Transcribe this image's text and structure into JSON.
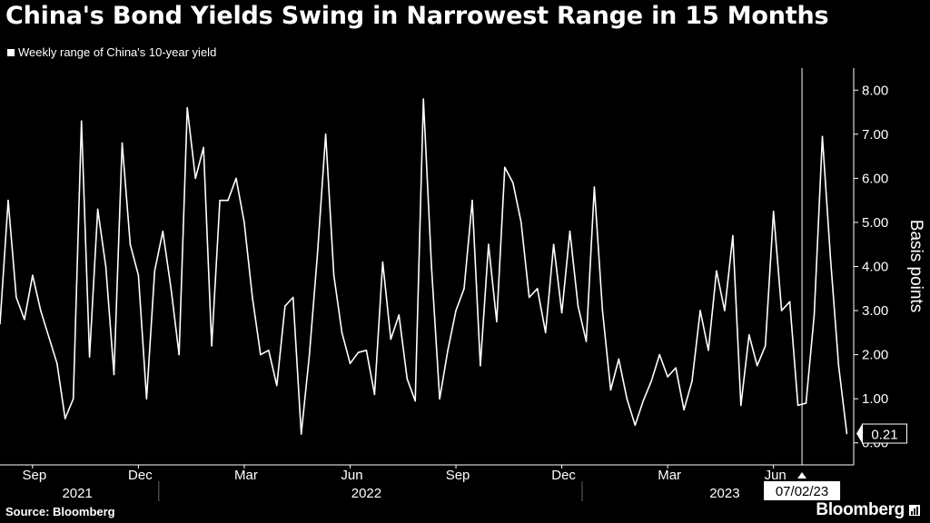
{
  "header": {
    "title": "China's Bond Yields Swing in Narrowest Range in 15 Months",
    "legend_label": "Weekly range of China's 10-year yield"
  },
  "footer": {
    "source": "Source: Bloomberg",
    "brand": "Bloomberg"
  },
  "colors": {
    "background": "#000000",
    "line": "#ffffff",
    "grid": "#444444",
    "text": "#ffffff"
  },
  "chart_data": {
    "type": "line",
    "title": "China's Bond Yields Swing in Narrowest Range in 15 Months",
    "ylabel": "Basis points",
    "xlabel": "",
    "ylim": [
      -0.5,
      8.5
    ],
    "yticks": [
      0,
      1,
      2,
      3,
      4,
      5,
      6,
      7,
      8
    ],
    "ytick_labels": [
      "0.00",
      "1.00",
      "2.00",
      "3.00",
      "4.00",
      "5.00",
      "6.00",
      "7.00",
      "8.00"
    ],
    "month_ticks": [
      {
        "label": "Sep",
        "week": 4
      },
      {
        "label": "Dec",
        "week": 17
      },
      {
        "label": "Mar",
        "week": 30
      },
      {
        "label": "Jun",
        "week": 43
      },
      {
        "label": "Sep",
        "week": 56
      },
      {
        "label": "Dec",
        "week": 69
      },
      {
        "label": "Mar",
        "week": 82
      },
      {
        "label": "Jun",
        "week": 95
      }
    ],
    "year_labels": [
      {
        "label": "2021",
        "week": 9.5
      },
      {
        "label": "2022",
        "week": 45
      },
      {
        "label": "2023",
        "week": 89
      }
    ],
    "year_dividers": [
      19.5,
      71.5
    ],
    "marker": {
      "label": "07/02/23",
      "week": 98.5
    },
    "last_value_label": "0.21",
    "legend": "top-left",
    "grid": false,
    "series": [
      {
        "name": "Weekly range of China's 10-year yield",
        "values": [
          2.7,
          5.5,
          3.3,
          2.8,
          3.8,
          3.0,
          2.4,
          1.8,
          0.55,
          1.0,
          7.3,
          1.95,
          5.3,
          4.0,
          1.55,
          6.8,
          4.5,
          3.8,
          1.0,
          3.9,
          4.8,
          3.5,
          2.0,
          7.6,
          6.0,
          6.7,
          2.2,
          5.5,
          5.5,
          6.0,
          5.0,
          3.3,
          2.0,
          2.1,
          1.3,
          3.1,
          3.3,
          0.2,
          2.0,
          4.3,
          7.0,
          3.8,
          2.5,
          1.8,
          2.05,
          2.1,
          1.1,
          4.1,
          2.35,
          2.9,
          1.45,
          0.95,
          7.8,
          4.0,
          1.0,
          2.1,
          3.0,
          3.5,
          5.5,
          1.75,
          4.5,
          2.75,
          6.25,
          5.9,
          5.0,
          3.3,
          3.5,
          2.5,
          4.5,
          2.95,
          4.8,
          3.1,
          2.3,
          5.8,
          3.0,
          1.2,
          1.9,
          1.0,
          0.4,
          0.95,
          1.4,
          2.0,
          1.5,
          1.7,
          0.75,
          1.4,
          3.0,
          2.1,
          3.9,
          3.0,
          4.7,
          0.85,
          2.45,
          1.75,
          2.2,
          5.25,
          3.0,
          3.2,
          0.85,
          0.9,
          2.9,
          6.95,
          4.2,
          1.75,
          0.21
        ]
      }
    ]
  }
}
